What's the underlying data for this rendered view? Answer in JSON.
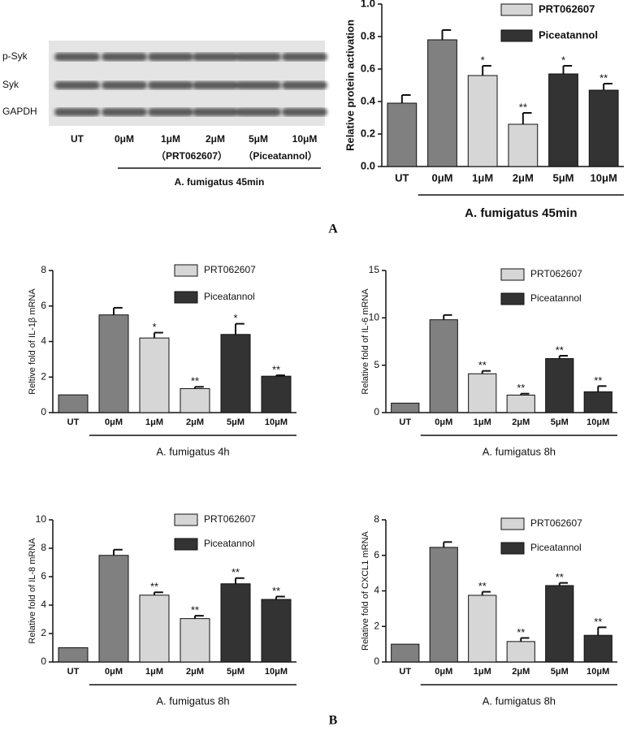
{
  "blot": {
    "row_labels": [
      "p-Syk",
      "Syk",
      "GAPDH"
    ],
    "lane_labels": [
      "UT",
      "0μM",
      "1μM",
      "2μM",
      "5μM",
      "10μM"
    ],
    "group_labels": [
      "（PRT062607）",
      "（Piceatannol）"
    ],
    "caption": "A. fumigatus 45min"
  },
  "panel_labels": [
    "A",
    "B"
  ],
  "chart_data": [
    {
      "type": "bar",
      "ylabel": "Relative protein activation",
      "xlabel": "A. fumigatus 45min",
      "categories": [
        "UT",
        "0μM",
        "1μM",
        "2μM",
        "5μM",
        "10μM"
      ],
      "values": [
        0.39,
        0.78,
        0.56,
        0.26,
        0.57,
        0.47
      ],
      "errors": [
        0.05,
        0.06,
        0.06,
        0.07,
        0.05,
        0.04
      ],
      "annotations": [
        null,
        null,
        "*",
        "**",
        "*",
        "**"
      ],
      "colors": [
        "#808080",
        "#808080",
        "#d6d6d6",
        "#d6d6d6",
        "#333333",
        "#333333"
      ],
      "legend": [
        {
          "name": "PRT062607",
          "color": "#d6d6d6"
        },
        {
          "name": "Piceatannol",
          "color": "#333333"
        }
      ],
      "ylim": [
        0,
        1
      ],
      "yticks": [
        {
          "value": 0,
          "label": "0.0"
        },
        {
          "value": 0.2,
          "label": "0.2"
        },
        {
          "value": 0.4,
          "label": "0.4"
        },
        {
          "value": 0.6,
          "label": "0.6"
        },
        {
          "value": 0.8,
          "label": "0.8"
        },
        {
          "value": 1,
          "label": "1.0"
        }
      ]
    },
    {
      "type": "bar",
      "ylabel": "Reltive fold of IL-1β  mRNA",
      "xlabel": "A. fumigatus 4h",
      "categories": [
        "UT",
        "0μM",
        "1μM",
        "2μM",
        "5μM",
        "10μM"
      ],
      "values": [
        1,
        5.5,
        4.2,
        1.35,
        4.4,
        2.05
      ],
      "errors": [
        null,
        0.4,
        0.3,
        0.1,
        0.6,
        0.05
      ],
      "annotations": [
        null,
        null,
        "*",
        "**",
        "*",
        "**"
      ],
      "colors": [
        "#808080",
        "#808080",
        "#d6d6d6",
        "#d6d6d6",
        "#333333",
        "#333333"
      ],
      "legend": [
        {
          "name": "PRT062607",
          "color": "#d6d6d6"
        },
        {
          "name": "Piceatannol",
          "color": "#333333"
        }
      ],
      "ylim": [
        0,
        8
      ],
      "yticks": [
        0,
        2,
        4,
        6,
        8
      ]
    },
    {
      "type": "bar",
      "ylabel": "Relative fold of IL-6 mRNA",
      "xlabel": "A. fumigatus 8h",
      "categories": [
        "UT",
        "0μM",
        "1μM",
        "2μM",
        "5μM",
        "10μM"
      ],
      "values": [
        1,
        9.8,
        4.1,
        1.85,
        5.7,
        2.2
      ],
      "errors": [
        null,
        0.5,
        0.3,
        0.15,
        0.3,
        0.6
      ],
      "annotations": [
        null,
        null,
        "**",
        "**",
        "**",
        "**"
      ],
      "colors": [
        "#808080",
        "#808080",
        "#d6d6d6",
        "#d6d6d6",
        "#333333",
        "#333333"
      ],
      "legend": [
        {
          "name": "PRT062607",
          "color": "#d6d6d6"
        },
        {
          "name": "Piceatannol",
          "color": "#333333"
        }
      ],
      "ylim": [
        0,
        15
      ],
      "yticks": [
        0,
        5,
        10,
        15
      ]
    },
    {
      "type": "bar",
      "ylabel": "Relative fold of IL-8  mRNA",
      "xlabel": "A. fumigatus 8h",
      "categories": [
        "UT",
        "0μM",
        "1μM",
        "2μM",
        "5μM",
        "10μM"
      ],
      "values": [
        1,
        7.5,
        4.7,
        3.05,
        5.5,
        4.4
      ],
      "errors": [
        null,
        0.4,
        0.2,
        0.2,
        0.4,
        0.2
      ],
      "annotations": [
        null,
        null,
        "**",
        "**",
        "**",
        "**"
      ],
      "colors": [
        "#808080",
        "#808080",
        "#d6d6d6",
        "#d6d6d6",
        "#333333",
        "#333333"
      ],
      "legend": [
        {
          "name": "PRT062607",
          "color": "#d6d6d6"
        },
        {
          "name": "Piceatannol",
          "color": "#333333"
        }
      ],
      "ylim": [
        0,
        10
      ],
      "yticks": [
        0,
        2,
        4,
        6,
        8,
        10
      ]
    },
    {
      "type": "bar",
      "ylabel": "Relative fold of CXCL1 mRNA",
      "xlabel": "A. fumigatus 8h",
      "categories": [
        "UT",
        "0μM",
        "1μM",
        "2μM",
        "5μM",
        "10μM"
      ],
      "values": [
        1,
        6.45,
        3.75,
        1.15,
        4.3,
        1.5
      ],
      "errors": [
        null,
        0.3,
        0.2,
        0.2,
        0.15,
        0.45
      ],
      "annotations": [
        null,
        null,
        "**",
        "**",
        "**",
        "**"
      ],
      "colors": [
        "#808080",
        "#808080",
        "#d6d6d6",
        "#d6d6d6",
        "#333333",
        "#333333"
      ],
      "legend": [
        {
          "name": "PRT062607",
          "color": "#d6d6d6"
        },
        {
          "name": "Piceatannol",
          "color": "#333333"
        }
      ],
      "ylim": [
        0,
        8
      ],
      "yticks": [
        0,
        2,
        4,
        6,
        8
      ]
    }
  ]
}
